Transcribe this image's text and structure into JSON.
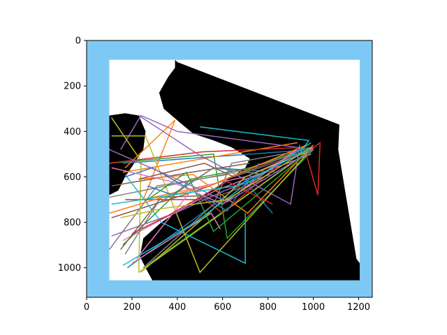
{
  "chart_data": {
    "type": "line",
    "title": "",
    "xlabel": "",
    "ylabel": "",
    "xlim": [
      0,
      1260
    ],
    "ylim": [
      1130,
      0
    ],
    "y_axis_inverted": true,
    "grid": false,
    "legend": "none",
    "x_ticks": [
      "0",
      "200",
      "400",
      "600",
      "800",
      "1000",
      "1200"
    ],
    "y_ticks": [
      "0",
      "200",
      "400",
      "600",
      "800",
      "1000"
    ],
    "x_tick_values": [
      0,
      200,
      400,
      600,
      800,
      1000,
      1200
    ],
    "y_tick_values": [
      0,
      200,
      400,
      600,
      800,
      1000
    ],
    "background_image": {
      "description_colors": {
        "sea": "#7ec8f5",
        "land": "#000000",
        "water_body": "#ffffff"
      },
      "extent": {
        "x": [
          0,
          1260
        ],
        "y": [
          0,
          1130
        ]
      },
      "white_frame": {
        "x": [
          100,
          1205
        ],
        "y": [
          85,
          1055
        ]
      },
      "dark_region_polygon": [
        [
          390,
          85
        ],
        [
          400,
          95
        ],
        [
          1115,
          370
        ],
        [
          1110,
          480
        ],
        [
          1190,
          960
        ],
        [
          1205,
          980
        ],
        [
          1205,
          1055
        ],
        [
          290,
          1055
        ],
        [
          260,
          1000
        ],
        [
          235,
          950
        ],
        [
          250,
          870
        ],
        [
          330,
          800
        ],
        [
          420,
          740
        ],
        [
          520,
          680
        ],
        [
          580,
          640
        ],
        [
          640,
          600
        ],
        [
          700,
          560
        ],
        [
          720,
          520
        ],
        [
          640,
          470
        ],
        [
          560,
          440
        ],
        [
          470,
          410
        ],
        [
          410,
          360
        ],
        [
          340,
          300
        ],
        [
          320,
          230
        ],
        [
          360,
          160
        ],
        [
          390,
          120
        ]
      ],
      "land_left_polygon": [
        [
          100,
          330
        ],
        [
          170,
          320
        ],
        [
          230,
          330
        ],
        [
          260,
          400
        ],
        [
          250,
          480
        ],
        [
          210,
          540
        ],
        [
          170,
          600
        ],
        [
          140,
          660
        ],
        [
          100,
          680
        ]
      ]
    },
    "series": [
      {
        "color": "#1f77b4",
        "x": [
          160,
          1000
        ],
        "y": [
          540,
          480
        ]
      },
      {
        "color": "#ff7f0e",
        "x": [
          160,
          930
        ],
        "y": [
          580,
          450
        ]
      },
      {
        "color": "#2ca02c",
        "x": [
          250,
          990
        ],
        "y": [
          1000,
          480
        ]
      },
      {
        "color": "#d62728",
        "x": [
          990,
          1030,
          1020
        ],
        "y": [
          480,
          450,
          680
        ]
      },
      {
        "color": "#9467bd",
        "x": [
          150,
          240,
          400,
          1000
        ],
        "y": [
          480,
          330,
          400,
          480
        ]
      },
      {
        "color": "#8c564b",
        "x": [
          110,
          490,
          930
        ],
        "y": [
          780,
          660,
          490
        ]
      },
      {
        "color": "#e377c2",
        "x": [
          160,
          570,
          990
        ],
        "y": [
          880,
          660,
          500
        ]
      },
      {
        "color": "#7f7f7f",
        "x": [
          100,
          310,
          620
        ],
        "y": [
          920,
          640,
          590
        ]
      },
      {
        "color": "#bcbd22",
        "x": [
          110,
          240,
          230,
          990
        ],
        "y": [
          340,
          530,
          1020,
          480
        ]
      },
      {
        "color": "#17becf",
        "x": [
          500,
          980,
          930
        ],
        "y": [
          380,
          440,
          510
        ]
      },
      {
        "color": "#1f77b4",
        "x": [
          180,
          700,
          820
        ],
        "y": [
          1000,
          620,
          760
        ]
      },
      {
        "color": "#ff7f0e",
        "x": [
          170,
          390,
          250,
          520
        ],
        "y": [
          560,
          350,
          700,
          640
        ]
      },
      {
        "color": "#2ca02c",
        "x": [
          100,
          560,
          620,
          1000
        ],
        "y": [
          540,
          500,
          870,
          480
        ]
      },
      {
        "color": "#d62728",
        "x": [
          100,
          510,
          960,
          1020
        ],
        "y": [
          540,
          490,
          470,
          680
        ]
      },
      {
        "color": "#9467bd",
        "x": [
          230,
          490,
          900,
          940
        ],
        "y": [
          330,
          500,
          720,
          460
        ]
      },
      {
        "color": "#8c564b",
        "x": [
          110,
          460,
          720
        ],
        "y": [
          640,
          580,
          540
        ]
      },
      {
        "color": "#e377c2",
        "x": [
          200,
          550,
          590
        ],
        "y": [
          980,
          760,
          830
        ]
      },
      {
        "color": "#7f7f7f",
        "x": [
          100,
          650,
          990
        ],
        "y": [
          690,
          580,
          480
        ]
      },
      {
        "color": "#bcbd22",
        "x": [
          110,
          260,
          500,
          990
        ],
        "y": [
          420,
          420,
          1020,
          480
        ]
      },
      {
        "color": "#17becf",
        "x": [
          700,
          700,
          330,
          170
        ],
        "y": [
          760,
          980,
          800,
          590
        ]
      },
      {
        "color": "#1f77b4",
        "x": [
          270,
          380,
          560,
          850
        ],
        "y": [
          640,
          680,
          560,
          580
        ]
      },
      {
        "color": "#ff7f0e",
        "x": [
          230,
          470,
          710,
          1000
        ],
        "y": [
          610,
          590,
          760,
          460
        ]
      },
      {
        "color": "#2ca02c",
        "x": [
          160,
          460,
          720,
          980
        ],
        "y": [
          900,
          610,
          560,
          470
        ]
      },
      {
        "color": "#d62728",
        "x": [
          170,
          520,
          600,
          900
        ],
        "y": [
          700,
          700,
          760,
          500
        ]
      },
      {
        "color": "#9467bd",
        "x": [
          110,
          390,
          610,
          810
        ],
        "y": [
          860,
          760,
          660,
          590
        ]
      },
      {
        "color": "#8c564b",
        "x": [
          150,
          330,
          590,
          790
        ],
        "y": [
          920,
          690,
          680,
          610
        ]
      },
      {
        "color": "#e377c2",
        "x": [
          220,
          470,
          700,
          1000
        ],
        "y": [
          960,
          650,
          600,
          470
        ]
      },
      {
        "color": "#7f7f7f",
        "x": [
          250,
          560,
          640,
          920
        ],
        "y": [
          1000,
          720,
          540,
          490
        ]
      },
      {
        "color": "#bcbd22",
        "x": [
          240,
          540,
          700,
          1000
        ],
        "y": [
          1020,
          760,
          600,
          480
        ]
      },
      {
        "color": "#17becf",
        "x": [
          160,
          480,
          720,
          990
        ],
        "y": [
          990,
          800,
          620,
          450
        ]
      },
      {
        "color": "#1f77b4",
        "x": [
          170,
          290,
          620,
          760
        ],
        "y": [
          600,
          560,
          750,
          540
        ]
      },
      {
        "color": "#ff7f0e",
        "x": [
          100,
          300,
          540,
          970
        ],
        "y": [
          760,
          700,
          640,
          460
        ]
      },
      {
        "color": "#2ca02c",
        "x": [
          270,
          440,
          560,
          990
        ],
        "y": [
          700,
          580,
          840,
          480
        ]
      },
      {
        "color": "#d62728",
        "x": [
          200,
          360,
          620,
          820
        ],
        "y": [
          850,
          770,
          620,
          720
        ]
      },
      {
        "color": "#9467bd",
        "x": [
          100,
          420,
          620,
          1000
        ],
        "y": [
          480,
          620,
          710,
          480
        ]
      },
      {
        "color": "#8c564b",
        "x": [
          230,
          520,
          650,
          990
        ],
        "y": [
          610,
          540,
          600,
          480
        ]
      },
      {
        "color": "#e377c2",
        "x": [
          110,
          370,
          600,
          940
        ],
        "y": [
          560,
          620,
          720,
          470
        ]
      },
      {
        "color": "#7f7f7f",
        "x": [
          170,
          310,
          560,
          780
        ],
        "y": [
          940,
          720,
          560,
          590
        ]
      },
      {
        "color": "#bcbd22",
        "x": [
          150,
          330,
          620,
          990
        ],
        "y": [
          780,
          740,
          700,
          470
        ]
      },
      {
        "color": "#17becf",
        "x": [
          110,
          380,
          660,
          980
        ],
        "y": [
          720,
          680,
          640,
          480
        ]
      }
    ]
  }
}
